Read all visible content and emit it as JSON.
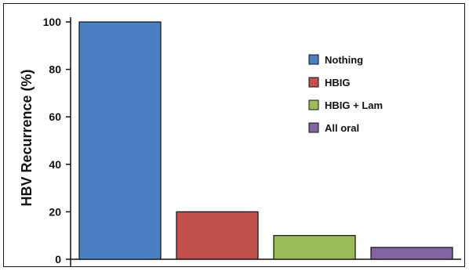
{
  "chart_data": {
    "type": "bar",
    "title": "",
    "xlabel": "",
    "ylabel": "HBV Recurrence (%)",
    "ylim": [
      0,
      100
    ],
    "yticks": [
      0,
      20,
      40,
      60,
      80,
      100
    ],
    "grid": false,
    "legend_position": "top-right",
    "categories": [
      "Nothing",
      "HBIG",
      "HBIG + Lam",
      "All oral"
    ],
    "values": [
      100,
      20,
      10,
      5
    ],
    "colors": [
      "#4a7fc1",
      "#c0504d",
      "#9bbb59",
      "#8064a2"
    ]
  }
}
